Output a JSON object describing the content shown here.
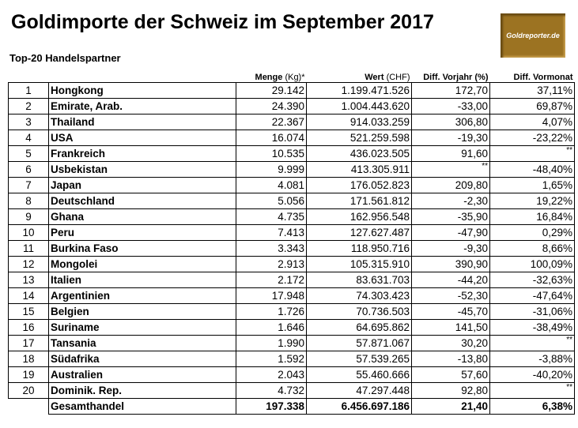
{
  "title": "Goldimporte der Schweiz im September 2017",
  "subtitle": "Top-20 Handelspartner",
  "logo_text": "Goldreporter.de",
  "columns": {
    "menge": "Menge",
    "menge_unit": "(Kg)*",
    "wert": "Wert",
    "wert_unit": "(CHF)",
    "vorjahr": "Diff. Vorjahr (%)",
    "vormonat": "Diff. Vormonat"
  },
  "rows": [
    [
      "1",
      "Hongkong",
      "29.142",
      "1.199.471.526",
      "172,70",
      "37,11%"
    ],
    [
      "2",
      "Emirate, Arab.",
      "24.390",
      "1.004.443.620",
      "-33,00",
      "69,87%"
    ],
    [
      "3",
      "Thailand",
      "22.367",
      "914.033.259",
      "306,80",
      "4,07%"
    ],
    [
      "4",
      "USA",
      "16.074",
      "521.259.598",
      "-19,30",
      "-23,22%"
    ],
    [
      "5",
      "Frankreich",
      "10.535",
      "436.023.505",
      "91,60",
      "**"
    ],
    [
      "6",
      "Usbekistan",
      "9.999",
      "413.305.911",
      "**",
      "-48,40%"
    ],
    [
      "7",
      "Japan",
      "4.081",
      "176.052.823",
      "209,80",
      "1,65%"
    ],
    [
      "8",
      "Deutschland",
      "5.056",
      "171.561.812",
      "-2,30",
      "19,22%"
    ],
    [
      "9",
      "Ghana",
      "4.735",
      "162.956.548",
      "-35,90",
      "16,84%"
    ],
    [
      "10",
      "Peru",
      "7.413",
      "127.627.487",
      "-47,90",
      "0,29%"
    ],
    [
      "11",
      "Burkina Faso",
      "3.343",
      "118.950.716",
      "-9,30",
      "8,66%"
    ],
    [
      "12",
      "Mongolei",
      "2.913",
      "105.315.910",
      "390,90",
      "100,09%"
    ],
    [
      "13",
      "Italien",
      "2.172",
      "83.631.703",
      "-44,20",
      "-32,63%"
    ],
    [
      "14",
      "Argentinien",
      "17.948",
      "74.303.423",
      "-52,30",
      "-47,64%"
    ],
    [
      "15",
      "Belgien",
      "1.726",
      "70.736.503",
      "-45,70",
      "-31,06%"
    ],
    [
      "16",
      "Suriname",
      "1.646",
      "64.695.862",
      "141,50",
      "-38,49%"
    ],
    [
      "17",
      "Tansania",
      "1.990",
      "57.871.067",
      "30,20",
      "**"
    ],
    [
      "18",
      "Südafrika",
      "1.592",
      "57.539.265",
      "-13,80",
      "-3,88%"
    ],
    [
      "19",
      "Australien",
      "2.043",
      "55.460.666",
      "57,60",
      "-40,20%"
    ],
    [
      "20",
      "Dominik. Rep.",
      "4.732",
      "47.297.448",
      "92,80",
      "**"
    ]
  ],
  "total": [
    "",
    "Gesamthandel",
    "197.338",
    "6.456.697.186",
    "21,40",
    "6,38%"
  ]
}
